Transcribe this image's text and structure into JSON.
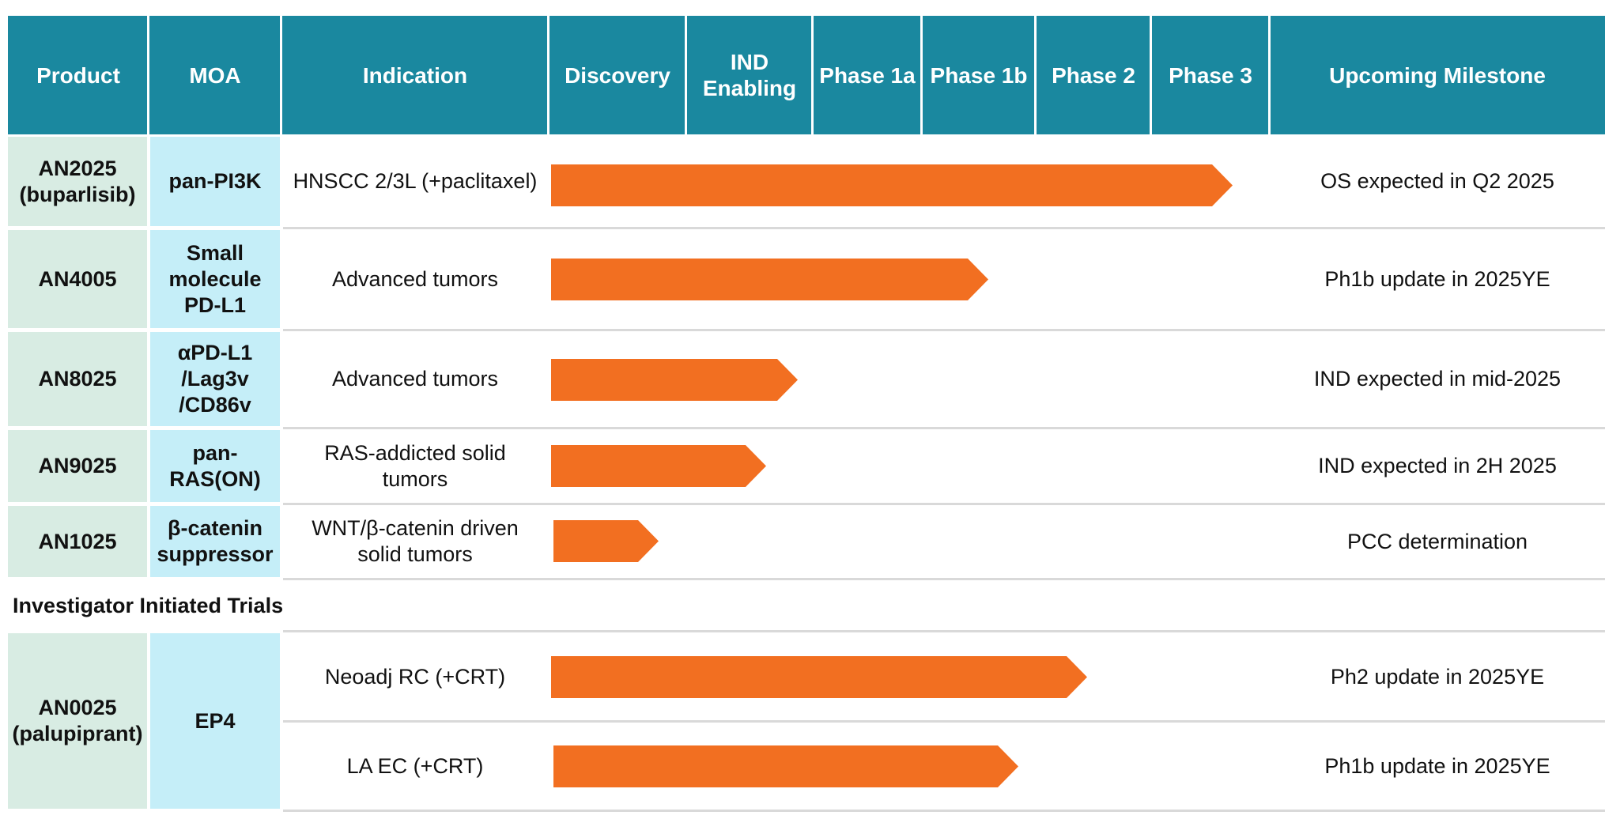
{
  "header": {
    "product": "Product",
    "moa": "MOA",
    "indication": "Indication",
    "discovery": "Discovery",
    "ind_enabling": "IND\nEnabling",
    "phase1a": "Phase 1a",
    "phase1b": "Phase 1b",
    "phase2": "Phase 2",
    "phase3": "Phase 3",
    "milestone": "Upcoming Milestone"
  },
  "rows": [
    {
      "product": "AN2025\n(buparlisib)",
      "moa": "pan-PI3K",
      "indication": "HNSCC 2/3L (+paclitaxel)",
      "stage": "Phase 3",
      "milestone": "OS expected in Q2 2025"
    },
    {
      "product": "AN4005",
      "moa": "Small\nmolecule\nPD-L1",
      "indication": "Advanced tumors",
      "stage": "Phase 1b",
      "milestone": "Ph1b update in 2025YE"
    },
    {
      "product": "AN8025",
      "moa": "αPD-L1\n/Lag3v\n/CD86v",
      "indication": "Advanced tumors",
      "stage": "IND Enabling",
      "milestone": "IND expected in mid-2025"
    },
    {
      "product": "AN9025",
      "moa": "pan-\nRAS(ON)",
      "indication": "RAS-addicted solid\ntumors",
      "stage": "IND Enabling",
      "milestone": "IND expected in 2H 2025"
    },
    {
      "product": "AN1025",
      "moa": "β-catenin\nsuppressor",
      "indication": "WNT/β-catenin driven\nsolid tumors",
      "stage": "Discovery",
      "milestone": "PCC determination"
    }
  ],
  "section_title": "Investigator Initiated Trials",
  "iit": {
    "product": "AN0025\n(palupiprant)",
    "moa": "EP4",
    "rows": [
      {
        "indication": "Neoadj RC (+CRT)",
        "stage": "Phase 2",
        "milestone": "Ph2 update in 2025YE"
      },
      {
        "indication": "LA EC (+CRT)",
        "stage": "Phase 1b",
        "milestone": "Ph1b update in 2025YE"
      }
    ]
  },
  "colors": {
    "header": "#1a889f",
    "bar": "#f26f21",
    "product_cell": "#d8ece3",
    "moa_cell": "#c5eef8"
  }
}
